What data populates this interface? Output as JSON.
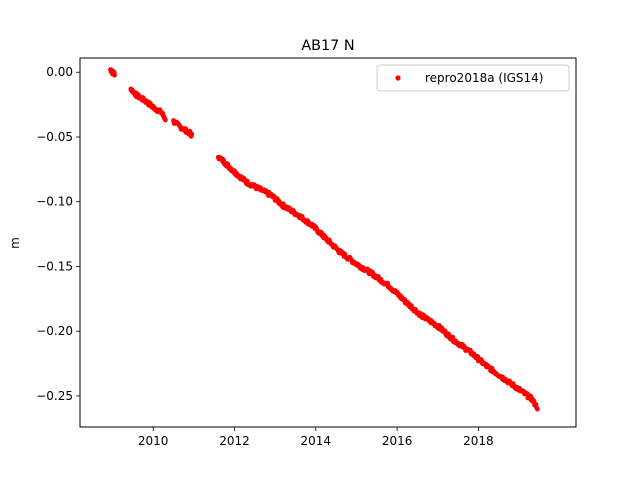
{
  "chart_data": {
    "type": "scatter",
    "title": "AB17 N",
    "xlabel": "",
    "ylabel": "m",
    "xlim": [
      2008.2,
      2020.4
    ],
    "ylim": [
      -0.274,
      0.011
    ],
    "x_ticks": [
      2010,
      2012,
      2014,
      2016,
      2018
    ],
    "y_ticks": [
      0.0,
      -0.05,
      -0.1,
      -0.15,
      -0.2,
      -0.25
    ],
    "y_tick_labels": [
      "0.00",
      "−0.05",
      "−0.10",
      "−0.15",
      "−0.20",
      "−0.25"
    ],
    "legend": {
      "placement": "top-right",
      "entries": [
        "repro2018a (IGS14)"
      ]
    },
    "grid": false,
    "series": [
      {
        "name": "repro2018a (IGS14)",
        "color": "#ff0000",
        "marker": "circle",
        "segments": [
          {
            "x": [
              2008.95,
              2009.0,
              2009.05
            ],
            "y": [
              0.002,
              0.0,
              -0.001
            ]
          },
          {
            "x": [
              2009.45,
              2009.6,
              2009.8,
              2010.0,
              2010.2,
              2010.3
            ],
            "y": [
              -0.013,
              -0.018,
              -0.022,
              -0.027,
              -0.031,
              -0.036
            ]
          },
          {
            "x": [
              2010.5,
              2010.7,
              2010.9,
              2010.95
            ],
            "y": [
              -0.038,
              -0.043,
              -0.047,
              -0.049
            ]
          },
          {
            "x": [
              2011.6,
              2011.8,
              2012.0,
              2012.3,
              2012.6,
              2012.9,
              2013.2,
              2013.6,
              2013.9,
              2014.2,
              2014.6,
              2015.0,
              2015.4,
              2015.8,
              2016.2,
              2016.6,
              2017.0,
              2017.4,
              2017.8,
              2018.2,
              2018.6,
              2019.0,
              2019.3,
              2019.45
            ],
            "y": [
              -0.065,
              -0.071,
              -0.077,
              -0.085,
              -0.09,
              -0.095,
              -0.103,
              -0.111,
              -0.118,
              -0.127,
              -0.139,
              -0.148,
              -0.156,
              -0.165,
              -0.177,
              -0.188,
              -0.196,
              -0.207,
              -0.216,
              -0.227,
              -0.236,
              -0.245,
              -0.252,
              -0.259
            ]
          }
        ]
      }
    ]
  }
}
